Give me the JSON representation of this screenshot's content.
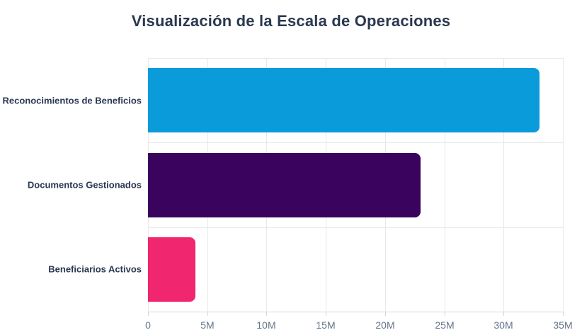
{
  "chart_data": {
    "type": "bar",
    "orientation": "horizontal",
    "title": "Visualización de la Escala de Operaciones",
    "categories": [
      "Reconocimientos de Beneficios",
      "Documentos Gestionados",
      "Beneficiarios Activos"
    ],
    "values": [
      33000000,
      23000000,
      4000000
    ],
    "bar_colors": [
      "#0a9bdb",
      "#3a045e",
      "#f0266e"
    ],
    "xlim": [
      0,
      35000000
    ],
    "x_ticks": [
      0,
      5000000,
      10000000,
      15000000,
      20000000,
      25000000,
      30000000,
      35000000
    ],
    "x_tick_labels": [
      "0",
      "5M",
      "10M",
      "15M",
      "20M",
      "25M",
      "30M",
      "35M"
    ],
    "grid": true,
    "legend": false,
    "xlabel": "",
    "ylabel": ""
  },
  "colors": {
    "background": "#ffffff",
    "title_text": "#2a3850",
    "category_text": "#2a3850",
    "tick_text": "#64748b",
    "gridline": "#e8e8e8",
    "axis_line": "#d2d6dc"
  }
}
